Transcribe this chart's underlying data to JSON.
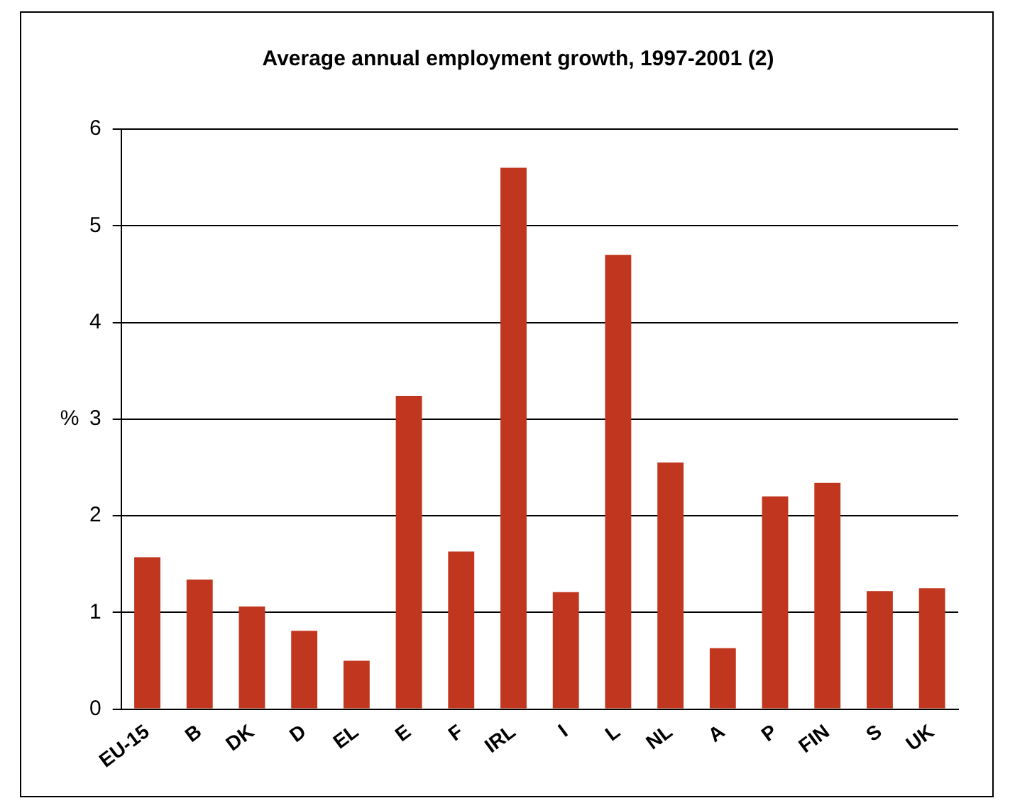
{
  "chart_data": {
    "type": "bar",
    "title": "Average annual employment growth, 1997-2001 (2)",
    "ylabel": "%",
    "categories": [
      "EU-15",
      "B",
      "DK",
      "D",
      "EL",
      "E",
      "F",
      "IRL",
      "I",
      "L",
      "NL",
      "A",
      "P",
      "FIN",
      "S",
      "UK"
    ],
    "values": [
      1.57,
      1.34,
      1.06,
      0.81,
      0.5,
      3.24,
      1.63,
      5.6,
      1.21,
      4.7,
      2.55,
      0.63,
      2.2,
      2.34,
      1.22,
      1.25
    ],
    "color": "#c0361e",
    "ylim": [
      0,
      6
    ],
    "yticks": [
      0,
      1,
      2,
      3,
      4,
      5,
      6
    ],
    "grid": "y",
    "legend": false
  }
}
